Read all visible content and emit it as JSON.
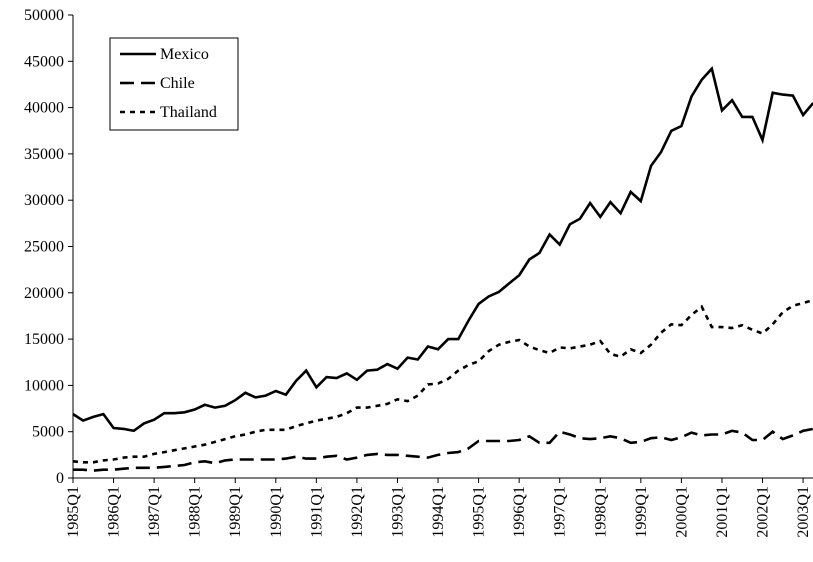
{
  "chart_data": {
    "type": "line",
    "categories": [
      "1985Q1",
      null,
      null,
      null,
      "1986Q1",
      null,
      null,
      null,
      "1987Q1",
      null,
      null,
      null,
      "1988Q1",
      null,
      null,
      null,
      "1989Q1",
      null,
      null,
      null,
      "1990Q1",
      null,
      null,
      null,
      "1991Q1",
      null,
      null,
      null,
      "1992Q1",
      null,
      null,
      null,
      "1993Q1",
      null,
      null,
      null,
      "1994Q1",
      null,
      null,
      null,
      "1995Q1",
      null,
      null,
      null,
      "1996Q1",
      null,
      null,
      null,
      "1997Q1",
      null,
      null,
      null,
      "1998Q1",
      null,
      null,
      null,
      "1999Q1",
      null,
      null,
      null,
      "2000Q1",
      null,
      null,
      null,
      "2001Q1",
      null,
      null,
      null,
      "2002Q1",
      null,
      null,
      null,
      "2003Q1",
      null
    ],
    "series": [
      {
        "name": "Mexico",
        "color": "#000000",
        "dash": "solid",
        "values": [
          6900,
          6200,
          6600,
          6900,
          5400,
          5300,
          5100,
          5900,
          6300,
          7000,
          7000,
          7100,
          7400,
          7900,
          7600,
          7800,
          8400,
          9200,
          8700,
          8900,
          9400,
          9000,
          10500,
          11600,
          9800,
          10900,
          10800,
          11300,
          10600,
          11600,
          11700,
          12300,
          11800,
          13000,
          12800,
          14200,
          13900,
          15000,
          15000,
          17000,
          18800,
          19600,
          20100,
          21000,
          21900,
          23600,
          24300,
          26300,
          25200,
          27400,
          28000,
          29700,
          28200,
          29800,
          28600,
          30900,
          29900,
          33700,
          35200,
          37500,
          38000,
          41200,
          43000,
          44200,
          39700,
          40800,
          39000,
          39000,
          36500,
          41600,
          41400,
          41300,
          39200,
          40500
        ]
      },
      {
        "name": "Chile",
        "color": "#000000",
        "dash": "long",
        "values": [
          900,
          900,
          800,
          900,
          900,
          1000,
          1100,
          1100,
          1100,
          1200,
          1300,
          1400,
          1700,
          1800,
          1600,
          1900,
          2000,
          2000,
          2000,
          2000,
          2000,
          2100,
          2300,
          2100,
          2100,
          2300,
          2400,
          2000,
          2200,
          2500,
          2600,
          2500,
          2500,
          2400,
          2300,
          2200,
          2500,
          2700,
          2800,
          3200,
          4000,
          4000,
          4000,
          4000,
          4100,
          4500,
          3800,
          3800,
          5000,
          4700,
          4300,
          4200,
          4300,
          4500,
          4300,
          3800,
          3900,
          4300,
          4400,
          4100,
          4400,
          4900,
          4600,
          4700,
          4700,
          5100,
          4900,
          4100,
          4100,
          5000,
          4200,
          4600,
          5100,
          5300
        ]
      },
      {
        "name": "Thailand",
        "color": "#000000",
        "dash": "short",
        "values": [
          1800,
          1700,
          1700,
          1900,
          2000,
          2200,
          2300,
          2300,
          2600,
          2800,
          3000,
          3200,
          3400,
          3600,
          3900,
          4200,
          4500,
          4700,
          5000,
          5200,
          5200,
          5200,
          5600,
          5900,
          6200,
          6400,
          6600,
          7000,
          7600,
          7600,
          7800,
          8000,
          8500,
          8300,
          8900,
          10100,
          10200,
          10700,
          11600,
          12200,
          12600,
          13700,
          14400,
          14700,
          14900,
          14200,
          13800,
          13500,
          14100,
          14000,
          14200,
          14400,
          14800,
          13400,
          13100,
          13900,
          13500,
          14400,
          15700,
          16600,
          16500,
          17600,
          18500,
          16300,
          16300,
          16200,
          16500,
          16000,
          15600,
          16600,
          17900,
          18600,
          18900,
          19200
        ]
      }
    ],
    "ylim": [
      0,
      50000
    ],
    "yticks": [
      0,
      5000,
      10000,
      15000,
      20000,
      25000,
      30000,
      35000,
      40000,
      45000,
      50000
    ],
    "grid": false,
    "legend": "top-left"
  }
}
